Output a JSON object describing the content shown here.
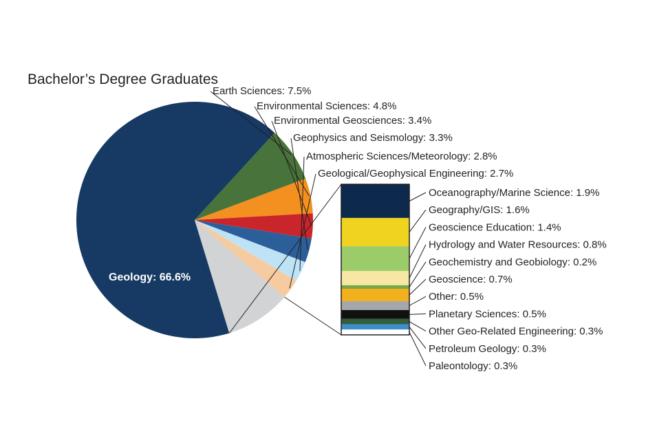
{
  "chart_data": {
    "type": "pie",
    "title": "Bachelor’s Degree Graduates",
    "slices": [
      {
        "label": "Geology: 66.6%",
        "name": "Geology",
        "value": 66.6,
        "color": "#173a64"
      },
      {
        "label": "Earth Sciences: 7.5%",
        "name": "Earth Sciences",
        "value": 7.5,
        "color": "#48733a"
      },
      {
        "label": "Environmental Sciences: 4.8%",
        "name": "Environmental Sciences",
        "value": 4.8,
        "color": "#f3901f"
      },
      {
        "label": "Environmental Geosciences: 3.4%",
        "name": "Environmental Geosciences",
        "value": 3.4,
        "color": "#c9252b"
      },
      {
        "label": "Geophysics and Seismology: 3.3%",
        "name": "Geophysics and Seismology",
        "value": 3.3,
        "color": "#2c5f9a"
      },
      {
        "label": "Atmospheric Sciences/Meteorology: 2.8%",
        "name": "Atmospheric Sciences/Meteorology",
        "value": 2.8,
        "color": "#bfe3f6"
      },
      {
        "label": "Geological/Geophysical Engineering: 2.7%",
        "name": "Geological/Geophysical Engineering",
        "value": 2.7,
        "color": "#f7cba0"
      },
      {
        "label": "",
        "name": "",
        "value": 9.0,
        "color": "#d1d3d4"
      }
    ],
    "breakdown": [
      {
        "label": "Oceanography/Marine Science: 1.9%",
        "value": 1.9,
        "color": "#0d2a4d"
      },
      {
        "label": "Geography/GIS: 1.6%",
        "value": 1.6,
        "color": "#f0d31f"
      },
      {
        "label": "Geoscience Education: 1.4%",
        "value": 1.4,
        "color": "#9ccc6a"
      },
      {
        "label": "Hydrology and Water Resources: 0.8%",
        "value": 0.8,
        "color": "#f7e6a4"
      },
      {
        "label": "Geochemistry and Geobiology: 0.2%",
        "value": 0.2,
        "color": "#78a845"
      },
      {
        "label": "Geoscience: 0.7%",
        "value": 0.7,
        "color": "#f2b01d"
      },
      {
        "label": "Other: 0.5%",
        "value": 0.5,
        "color": "#a5a7aa"
      },
      {
        "label": "Planetary Sciences: 0.5%",
        "value": 0.5,
        "color": "#111111"
      },
      {
        "label": "Other Geo-Related Engineering: 0.3%",
        "value": 0.3,
        "color": "#335e3c"
      },
      {
        "label": "Petroleum Geology: 0.3%",
        "value": 0.3,
        "color": "#3d8ec9"
      },
      {
        "label": "Paleontology: 0.3%",
        "value": 0.3,
        "color": "#ffffff"
      }
    ],
    "legend": "none"
  }
}
